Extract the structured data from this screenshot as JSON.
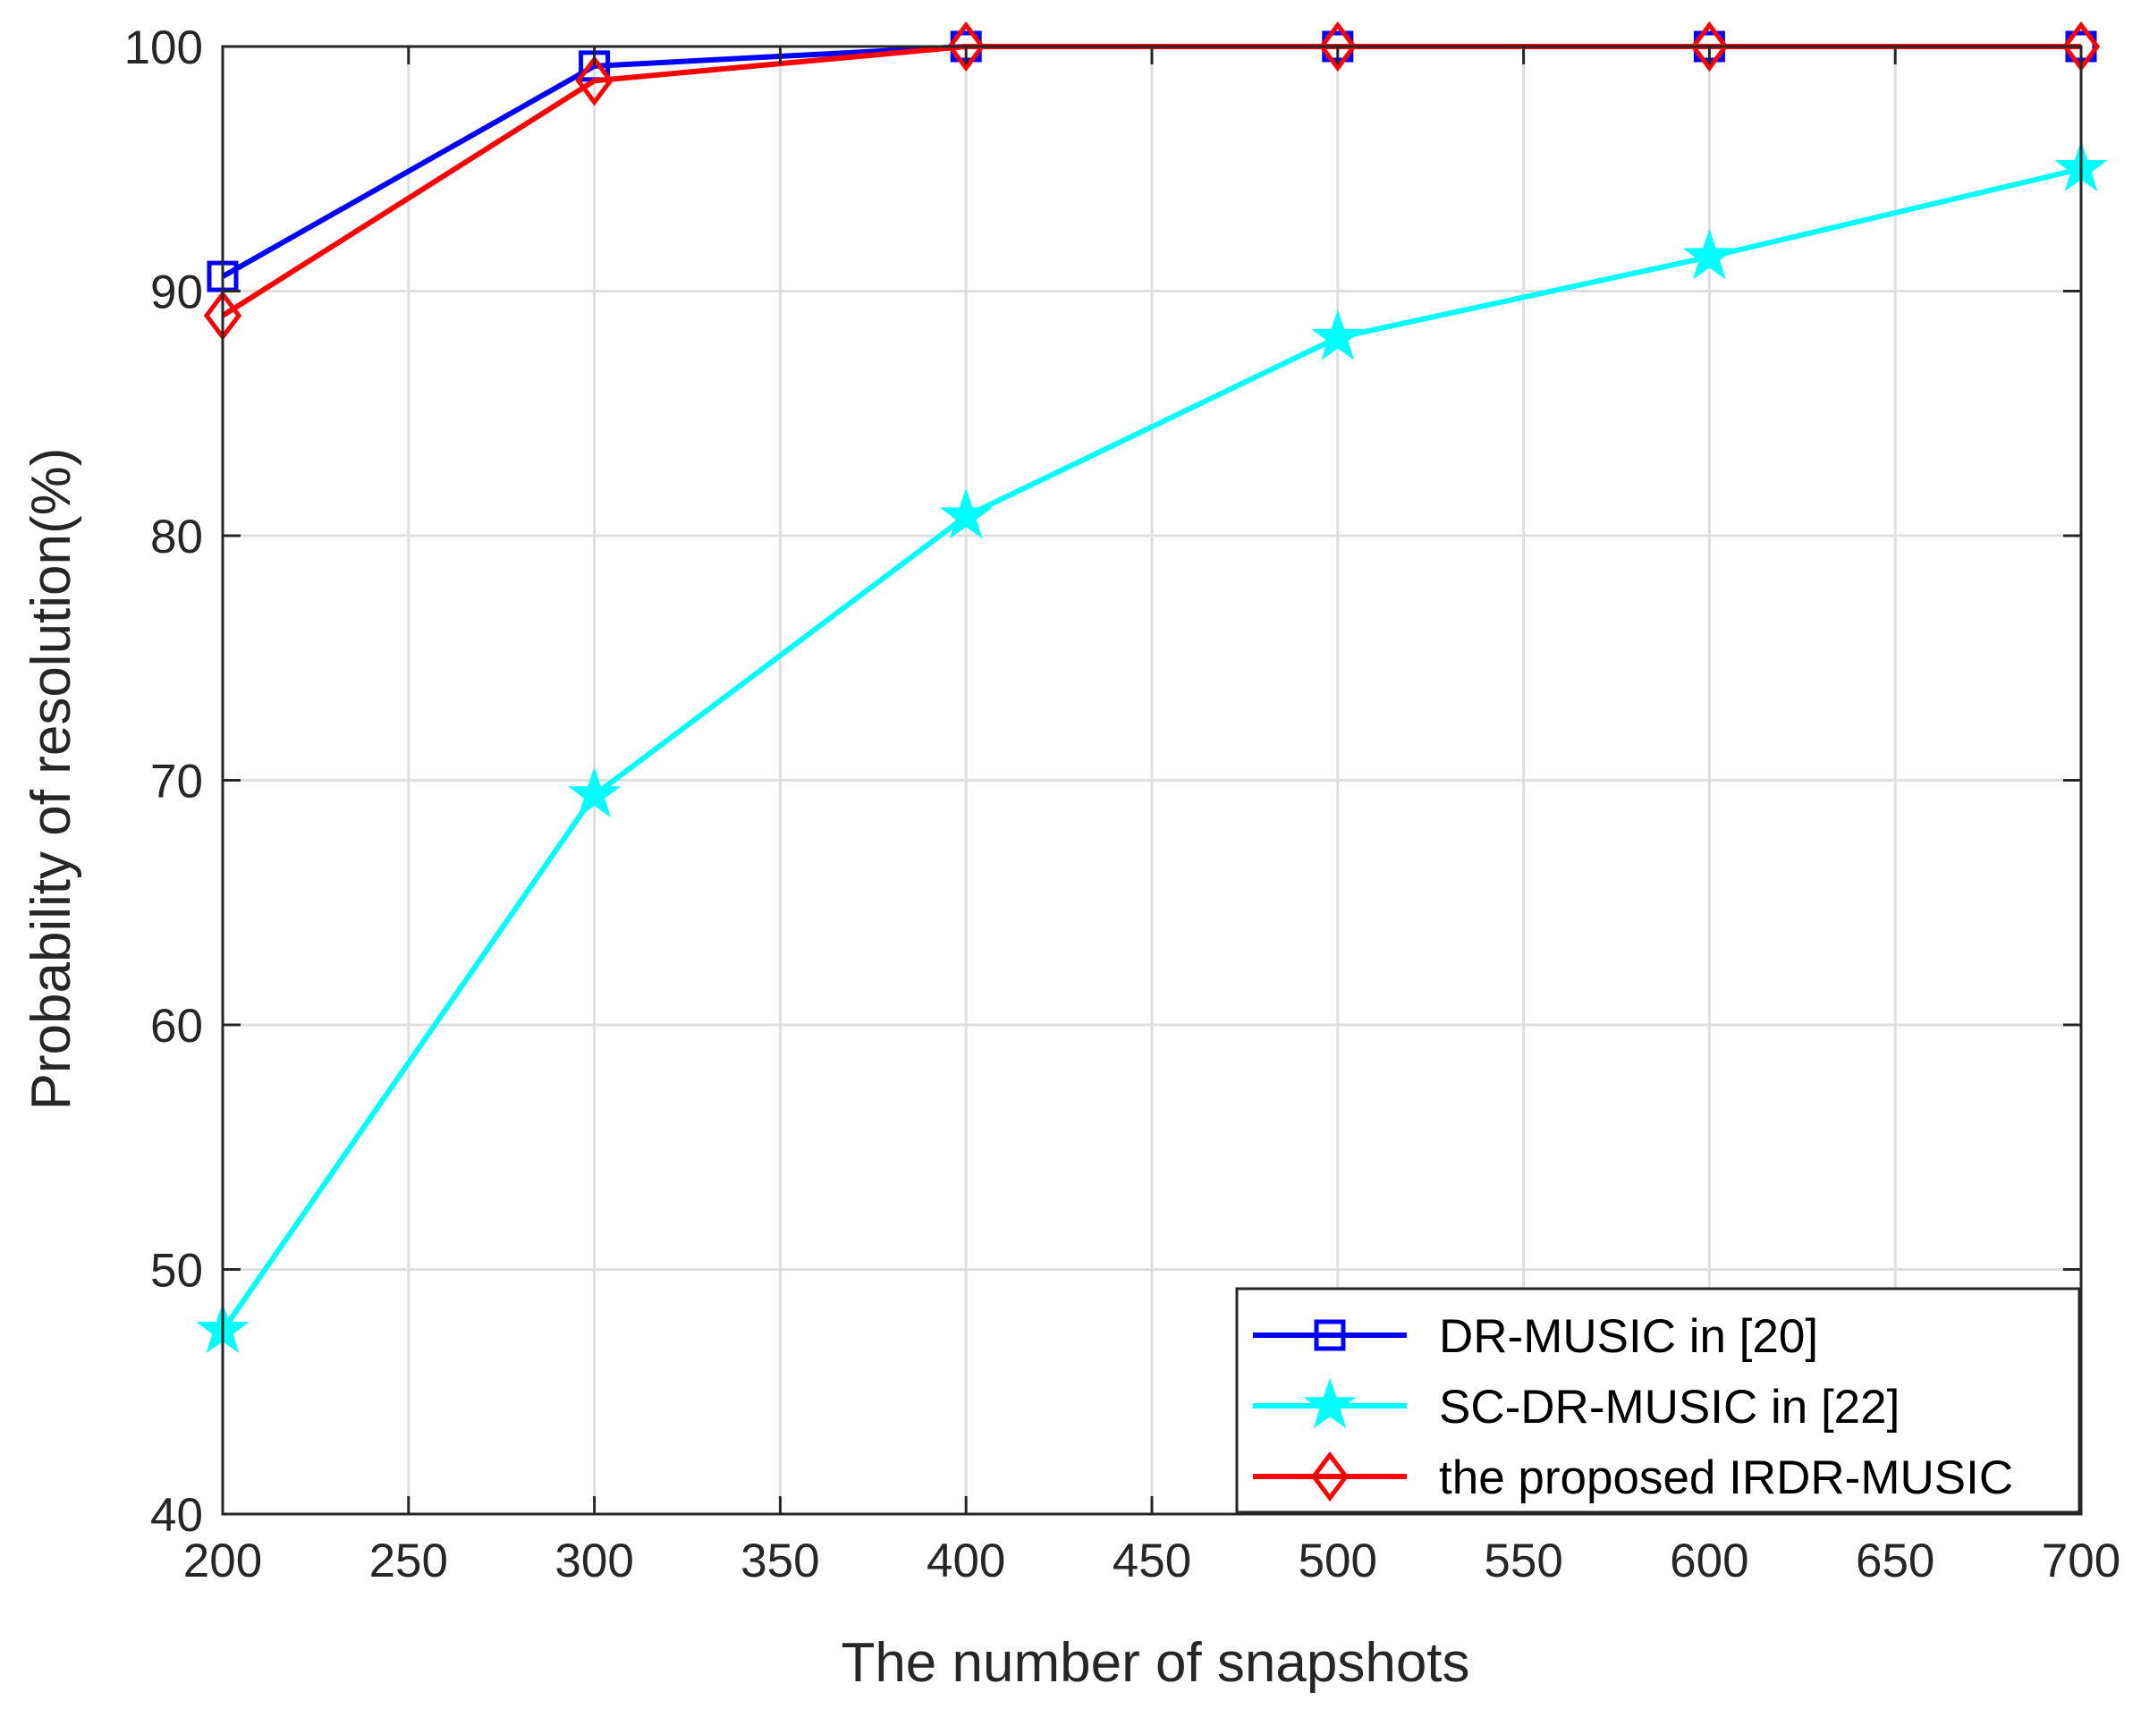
{
  "chart_data": {
    "type": "line",
    "title": "",
    "xlabel": "The number of snapshots",
    "ylabel": "Probability of resolution(%)",
    "x": [
      200,
      300,
      400,
      500,
      600,
      700
    ],
    "xlim": [
      200,
      700
    ],
    "ylim": [
      40,
      100
    ],
    "xticks": [
      200,
      250,
      300,
      350,
      400,
      450,
      500,
      550,
      600,
      650,
      700
    ],
    "yticks": [
      40,
      50,
      60,
      70,
      80,
      90,
      100
    ],
    "grid": true,
    "legend_position": "bottom-right",
    "series": [
      {
        "name": "DR-MUSIC in [20]",
        "color": "#0000ff",
        "marker": "square",
        "values": [
          90.6,
          99.2,
          100,
          100,
          100,
          100
        ]
      },
      {
        "name": "SC-DR-MUSIC in [22]",
        "color": "#00ffff",
        "marker": "star",
        "values": [
          47.5,
          69.4,
          80.8,
          88.1,
          91.4,
          95.0
        ]
      },
      {
        "name": "the proposed IRDR-MUSIC",
        "color": "#ff0000",
        "marker": "diamond",
        "values": [
          89.0,
          98.6,
          100,
          100,
          100,
          100
        ]
      }
    ]
  }
}
